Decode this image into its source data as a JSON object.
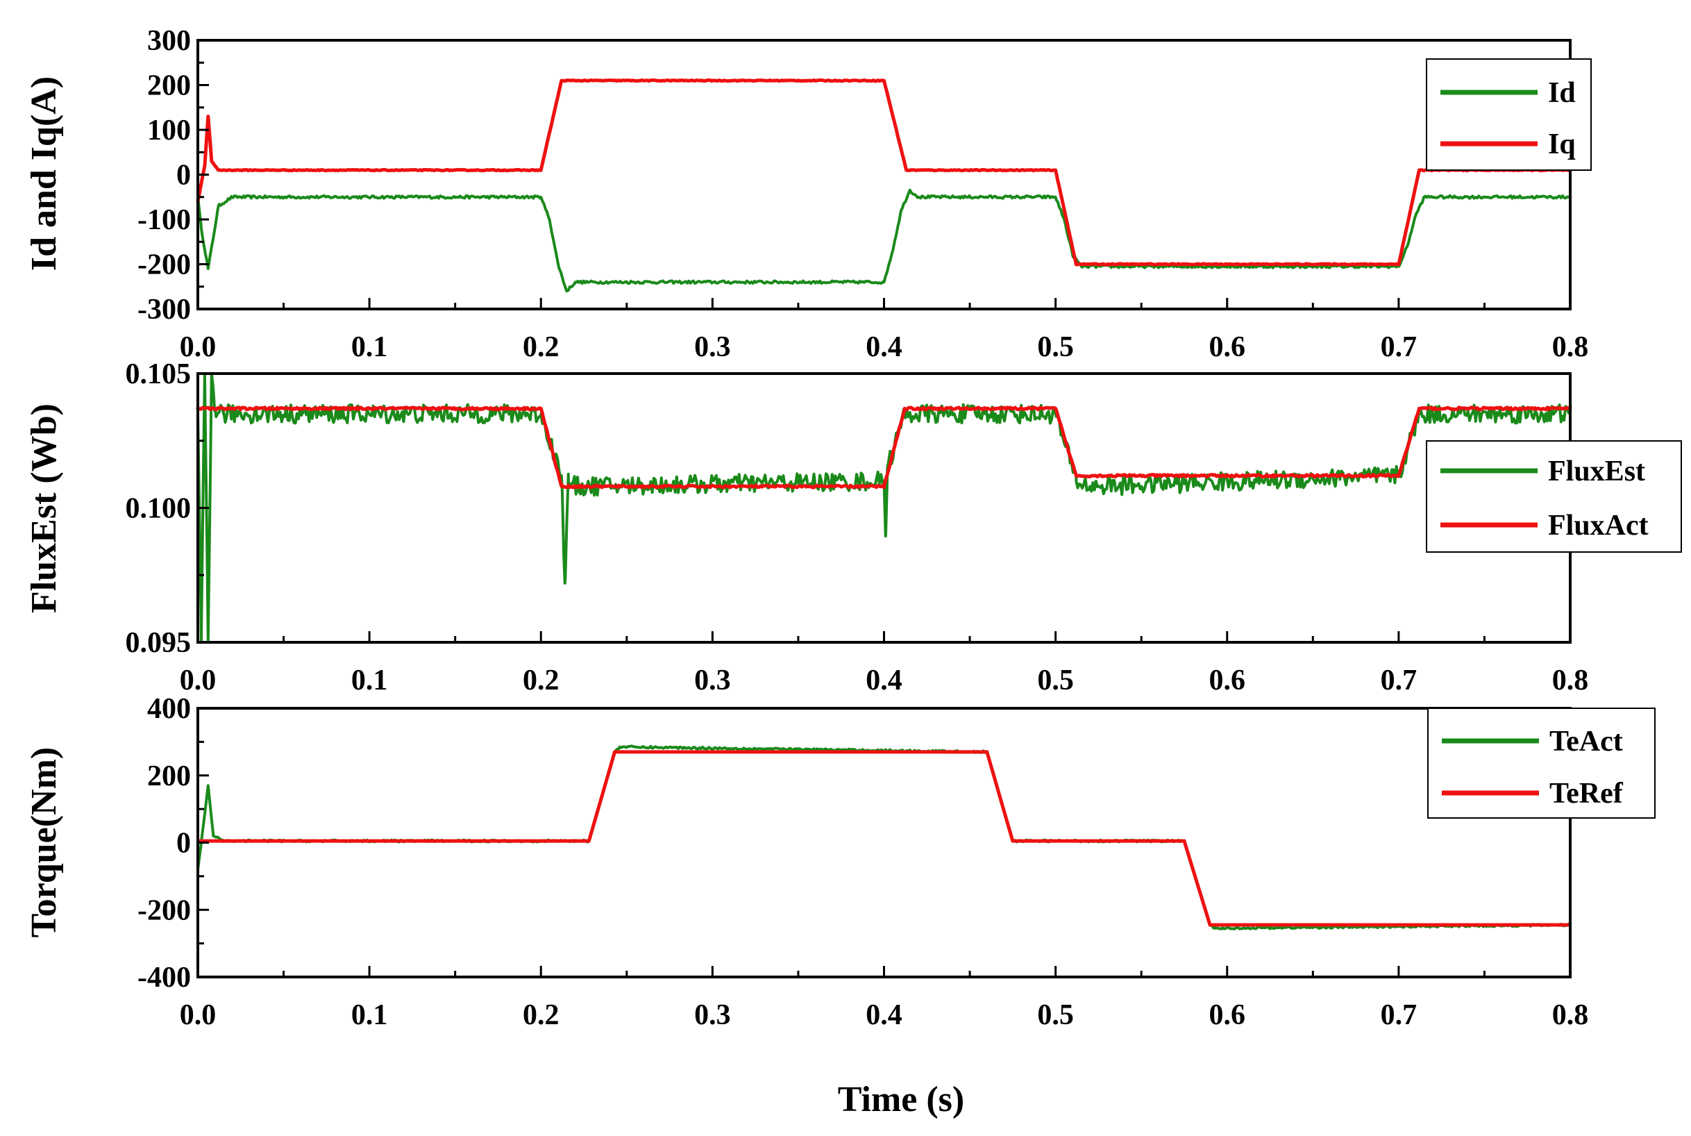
{
  "chart_data": [
    {
      "type": "line",
      "id": "currents",
      "ylabel": "Id and Iq(A)",
      "xlabel": "",
      "xlim": [
        0,
        0.8
      ],
      "ylim": [
        -300,
        300
      ],
      "x_ticks": [
        "0.0",
        "0.1",
        "0.2",
        "0.3",
        "0.4",
        "0.5",
        "0.6",
        "0.7",
        "0.8"
      ],
      "y_ticks": [
        "300",
        "200",
        "100",
        "0",
        "-100",
        "-200",
        "-300"
      ],
      "y_tick_values": [
        300,
        200,
        100,
        0,
        -100,
        -200,
        -300
      ],
      "legend_position": "top-right",
      "series": [
        {
          "name": "Id",
          "color": "#1a8a1a",
          "noise": 3,
          "x": [
            0,
            0.002,
            0.006,
            0.012,
            0.02,
            0.2,
            0.205,
            0.21,
            0.215,
            0.22,
            0.4,
            0.405,
            0.41,
            0.415,
            0.42,
            0.5,
            0.505,
            0.51,
            0.515,
            0.7,
            0.705,
            0.71,
            0.715,
            0.8
          ],
          "y": [
            -50,
            -120,
            -210,
            -70,
            -50,
            -50,
            -100,
            -200,
            -260,
            -240,
            -240,
            -170,
            -80,
            -35,
            -50,
            -50,
            -100,
            -180,
            -205,
            -205,
            -160,
            -90,
            -50,
            -50
          ]
        },
        {
          "name": "Iq",
          "color": "#ee1111",
          "noise": 1,
          "x": [
            0,
            0.004,
            0.006,
            0.008,
            0.012,
            0.2,
            0.212,
            0.4,
            0.413,
            0.5,
            0.512,
            0.7,
            0.712,
            0.8
          ],
          "y": [
            -60,
            20,
            130,
            30,
            10,
            10,
            210,
            210,
            10,
            10,
            -200,
            -200,
            10,
            10
          ]
        }
      ]
    },
    {
      "type": "line",
      "id": "flux",
      "ylabel": "FluxEst (Wb)",
      "xlabel": "",
      "xlim": [
        0,
        0.8
      ],
      "ylim": [
        0.095,
        0.105
      ],
      "x_ticks": [
        "0.0",
        "0.1",
        "0.2",
        "0.3",
        "0.4",
        "0.5",
        "0.6",
        "0.7",
        "0.8"
      ],
      "y_ticks": [
        "0.105",
        "0.100",
        "0.095"
      ],
      "y_tick_values": [
        0.105,
        0.1,
        0.095
      ],
      "legend_position": "right",
      "series": [
        {
          "name": "FluxEst",
          "color": "#1a8a1a",
          "noise": 0.00035,
          "x": [
            0,
            0.002,
            0.004,
            0.006,
            0.008,
            0.01,
            0.015,
            0.2,
            0.212,
            0.214,
            0.216,
            0.22,
            0.4,
            0.401,
            0.402,
            0.412,
            0.5,
            0.512,
            0.52,
            0.7,
            0.712,
            0.8
          ],
          "y": [
            0.1035,
            0.095,
            0.105,
            0.095,
            0.105,
            0.1037,
            0.1035,
            0.1035,
            0.1012,
            0.0972,
            0.101,
            0.1008,
            0.101,
            0.099,
            0.1015,
            0.1035,
            0.1035,
            0.101,
            0.1008,
            0.1012,
            0.1035,
            0.1035
          ]
        },
        {
          "name": "FluxAct",
          "color": "#ee1111",
          "noise": 4e-05,
          "x": [
            0,
            0.2,
            0.212,
            0.4,
            0.412,
            0.5,
            0.512,
            0.7,
            0.712,
            0.8
          ],
          "y": [
            0.1037,
            0.1037,
            0.1008,
            0.1008,
            0.1037,
            0.1037,
            0.1012,
            0.1012,
            0.1037,
            0.1037
          ]
        }
      ]
    },
    {
      "type": "line",
      "id": "torque",
      "ylabel": "Torque(Nm)",
      "xlabel": "Time (s)",
      "xlim": [
        0,
        0.8
      ],
      "ylim": [
        -400,
        400
      ],
      "x_ticks": [
        "0.0",
        "0.1",
        "0.2",
        "0.3",
        "0.4",
        "0.5",
        "0.6",
        "0.7",
        "0.8"
      ],
      "y_ticks": [
        "400",
        "200",
        "0",
        "-200",
        "-400"
      ],
      "y_tick_values": [
        400,
        200,
        0,
        -200,
        -400
      ],
      "legend_position": "top-right",
      "series": [
        {
          "name": "TeAct",
          "color": "#1a8a1a",
          "noise": 3,
          "x": [
            0,
            0.002,
            0.006,
            0.009,
            0.015,
            0.228,
            0.243,
            0.246,
            0.46,
            0.475,
            0.575,
            0.59,
            0.593,
            0.8
          ],
          "y": [
            -80,
            0,
            170,
            20,
            5,
            5,
            270,
            285,
            270,
            5,
            5,
            -245,
            -255,
            -245
          ]
        },
        {
          "name": "TeRef",
          "color": "#ee1111",
          "noise": 0,
          "x": [
            0,
            0.228,
            0.243,
            0.46,
            0.475,
            0.575,
            0.59,
            0.8
          ],
          "y": [
            5,
            5,
            270,
            270,
            5,
            5,
            -245,
            -245
          ]
        }
      ]
    }
  ]
}
